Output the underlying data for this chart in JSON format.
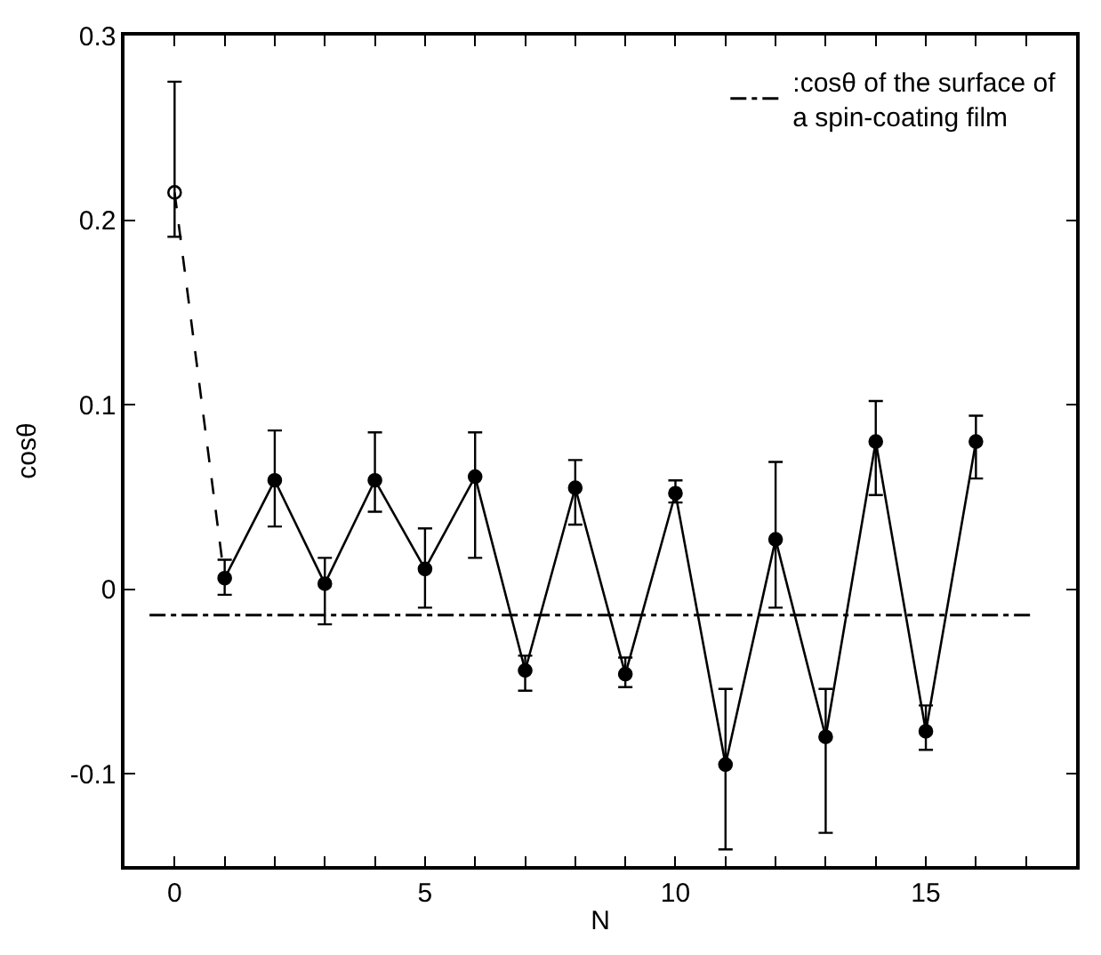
{
  "chart_data": {
    "type": "line",
    "xlabel": "N",
    "ylabel": "cosθ",
    "xlim": [
      -1,
      18
    ],
    "ylim": [
      -0.15,
      0.3
    ],
    "xticks": [
      0,
      {
        "value": 1,
        "label": null
      },
      {
        "value": 2,
        "label": null
      },
      {
        "value": 3,
        "label": null
      },
      {
        "value": 4,
        "label": null
      },
      5,
      {
        "value": 6,
        "label": null
      },
      {
        "value": 7,
        "label": null
      },
      {
        "value": 8,
        "label": null
      },
      {
        "value": 9,
        "label": null
      },
      10,
      {
        "value": 11,
        "label": null
      },
      {
        "value": 12,
        "label": null
      },
      {
        "value": 13,
        "label": null
      },
      {
        "value": 14,
        "label": null
      },
      15,
      {
        "value": 16,
        "label": null
      },
      {
        "value": 17,
        "label": null
      }
    ],
    "yticks": [
      -0.1,
      0,
      0.1,
      0.2,
      0.3
    ],
    "grid": false,
    "legend": "top right",
    "ref_lines": [
      {
        "axis": "y",
        "value": -0.014,
        "label": ":cosθ of the surface of\na spin-coating film",
        "color": "#000000",
        "line_style": "dashdot"
      }
    ],
    "series": [
      {
        "color": "#000000",
        "x": [
          0,
          1
        ],
        "values": [
          0.215,
          0.005
        ],
        "line_style": "dashed",
        "marker": "none"
      },
      {
        "type": "scatter",
        "color": "#000000",
        "x": [
          0
        ],
        "values": [
          0.215
        ],
        "errors": [
          [
            0.191,
            0.275
          ]
        ],
        "marker": "circle-open"
      },
      {
        "color": "#000000",
        "line_style": "solid",
        "marker": "circle",
        "x": [
          1,
          2,
          3,
          4,
          5,
          6,
          7,
          8,
          9,
          10,
          11,
          12,
          13,
          14,
          15,
          16
        ],
        "values": [
          0.006,
          0.059,
          0.003,
          0.059,
          0.011,
          0.061,
          -0.044,
          0.055,
          -0.046,
          0.052,
          -0.095,
          0.027,
          -0.08,
          0.08,
          -0.077,
          0.08
        ],
        "errors": [
          [
            -0.003,
            0.016
          ],
          [
            0.034,
            0.086
          ],
          [
            -0.019,
            0.017
          ],
          [
            0.042,
            0.085
          ],
          [
            -0.01,
            0.033
          ],
          [
            0.017,
            0.085
          ],
          [
            -0.055,
            -0.036
          ],
          [
            0.035,
            0.07
          ],
          [
            -0.053,
            -0.037
          ],
          [
            0.047,
            0.059
          ],
          [
            -0.141,
            -0.054
          ],
          [
            -0.01,
            0.069
          ],
          [
            -0.132,
            -0.054
          ],
          [
            0.051,
            0.102
          ],
          [
            -0.087,
            -0.063
          ],
          [
            0.06,
            0.094
          ]
        ]
      }
    ]
  }
}
